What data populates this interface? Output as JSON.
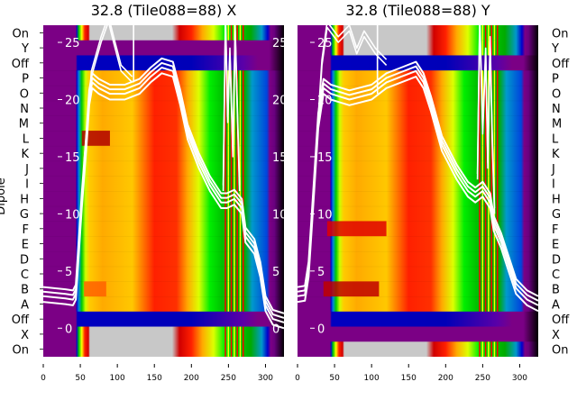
{
  "ylabel": "Dipole",
  "row_labels": [
    "On",
    "Y",
    "Off",
    "P",
    "O",
    "N",
    "M",
    "L",
    "K",
    "J",
    "I",
    "H",
    "G",
    "F",
    "E",
    "D",
    "C",
    "B",
    "A",
    "Off",
    "X",
    "On"
  ],
  "colors": {
    "line": "#ffffff",
    "gray": "#c8c8c8",
    "purple": "#7b0085"
  },
  "row_profiles": {
    "data": [
      [
        0,
        "#7b0085"
      ],
      [
        44,
        "#7b0085"
      ],
      [
        45,
        "#0000c8"
      ],
      [
        48,
        "#0088dd"
      ],
      [
        52,
        "#00cc00"
      ],
      [
        57,
        "#ccff00"
      ],
      [
        62,
        "#ffcc00"
      ],
      [
        80,
        "#ffaa00"
      ],
      [
        120,
        "#ffc800"
      ],
      [
        150,
        "#ff2000"
      ],
      [
        180,
        "#ff3000"
      ],
      [
        195,
        "#ffaa00"
      ],
      [
        210,
        "#ddff00"
      ],
      [
        225,
        "#00ee00"
      ],
      [
        250,
        "#00aa00"
      ],
      [
        272,
        "#00aa00"
      ],
      [
        282,
        "#0099cc"
      ],
      [
        302,
        "#0044dd"
      ],
      [
        306,
        "#7b0085"
      ],
      [
        312,
        "#6a0080"
      ],
      [
        325,
        "#000000"
      ]
    ],
    "off": [
      [
        0,
        "#7b0085"
      ],
      [
        44,
        "#7b0085"
      ],
      [
        46,
        "#0000c0"
      ],
      [
        200,
        "#0000b8"
      ],
      [
        270,
        "#5a00a8"
      ],
      [
        290,
        "#7b0085"
      ],
      [
        305,
        "#7b0085"
      ],
      [
        325,
        "#000000"
      ]
    ],
    "on": [
      [
        0,
        "#7b0085"
      ],
      [
        44,
        "#7b0085"
      ],
      [
        45,
        "#0000cc"
      ],
      [
        48,
        "#00cc00"
      ],
      [
        52,
        "#ffff00"
      ],
      [
        56,
        "#ff2000"
      ],
      [
        61,
        "#d00000"
      ],
      [
        63,
        "#c8c8c8"
      ],
      [
        174,
        "#c8c8c8"
      ],
      [
        184,
        "#d00000"
      ],
      [
        200,
        "#ff2000"
      ],
      [
        215,
        "#ffaa00"
      ],
      [
        230,
        "#ddff00"
      ],
      [
        245,
        "#00ee00"
      ],
      [
        280,
        "#00aa00"
      ],
      [
        295,
        "#0099cc"
      ],
      [
        303,
        "#0000cc"
      ],
      [
        307,
        "#7b0085"
      ],
      [
        312,
        "#6a0080"
      ],
      [
        325,
        "#000000"
      ]
    ],
    "purple": [
      [
        0,
        "#7b0085"
      ],
      [
        290,
        "#7b0085"
      ],
      [
        305,
        "#7b0085"
      ],
      [
        325,
        "#000000"
      ]
    ]
  },
  "stripes": [
    [
      245,
      "#ff0000"
    ],
    [
      249,
      "#ffff00"
    ],
    [
      253,
      "#ff0000"
    ],
    [
      257,
      "#ffff00"
    ],
    [
      261,
      "#ff0000"
    ],
    [
      265,
      "#ffff00"
    ],
    [
      269,
      "#ff0000"
    ]
  ],
  "chart_data": [
    {
      "type": "heatmap",
      "title": "32.8 (Tile088=88) X",
      "xlabel": "",
      "ylabel": "Dipole",
      "xlim": [
        0,
        325
      ],
      "xticks": [
        "0",
        "50",
        "100",
        "150",
        "200",
        "250",
        "300"
      ],
      "overlay_ylim": [
        -2.5,
        26.5
      ],
      "overlay_yticks": [
        "0",
        "5",
        "10",
        "15",
        "20",
        "25"
      ],
      "row_types": [
        "on",
        "purple",
        "off",
        "data",
        "data",
        "data",
        "data",
        "data",
        "data",
        "data",
        "data",
        "data",
        "data",
        "data",
        "data",
        "data",
        "data",
        "data",
        "data",
        "off",
        "on",
        "on"
      ],
      "hot_spots": [
        {
          "row": 7,
          "x": [
            52,
            90
          ],
          "color": "#b00000"
        },
        {
          "row": 17,
          "x": [
            55,
            85
          ],
          "color": "#ff6000"
        }
      ],
      "series": [
        {
          "name": "trace",
          "points": [
            [
              0,
              2.8
            ],
            [
              30,
              2.6
            ],
            [
              40,
              2.5
            ],
            [
              44,
              3
            ],
            [
              47,
              6
            ],
            [
              52,
              11
            ],
            [
              58,
              16
            ],
            [
              62,
              20
            ],
            [
              66,
              21.5
            ],
            [
              75,
              21
            ],
            [
              90,
              20.5
            ],
            [
              110,
              20.5
            ],
            [
              130,
              21
            ],
            [
              145,
              22
            ],
            [
              160,
              22.8
            ],
            [
              175,
              22.5
            ],
            [
              185,
              20
            ],
            [
              195,
              17
            ],
            [
              210,
              14.5
            ],
            [
              225,
              12.5
            ],
            [
              240,
              11
            ],
            [
              248,
              11
            ],
            [
              258,
              11.3
            ],
            [
              268,
              10.5
            ],
            [
              273,
              8
            ],
            [
              285,
              7
            ],
            [
              293,
              5
            ],
            [
              300,
              2
            ],
            [
              310,
              0.8
            ],
            [
              325,
              0.5
            ]
          ]
        },
        {
          "name": "spike-trace",
          "points": [
            [
              55,
              14
            ],
            [
              65,
              22
            ],
            [
              78,
              25
            ],
            [
              88,
              26.8
            ],
            [
              95,
              25
            ],
            [
              105,
              22.5
            ],
            [
              120,
              21.5
            ]
          ]
        },
        {
          "name": "spike-a",
          "points": [
            [
              122,
              21.5
            ],
            [
              122,
              27
            ]
          ]
        },
        {
          "name": "spike-b",
          "points": [
            [
              243,
              12
            ],
            [
              246,
              27
            ],
            [
              249,
              18
            ],
            [
              252,
              24
            ],
            [
              256,
              15
            ],
            [
              259,
              26
            ],
            [
              262,
              19
            ],
            [
              265,
              12
            ]
          ]
        }
      ]
    },
    {
      "type": "heatmap",
      "title": "32.8 (Tile088=88) Y",
      "xlabel": "",
      "ylabel": "",
      "xlim": [
        0,
        325
      ],
      "xticks": [
        "0",
        "50",
        "100",
        "150",
        "200",
        "250",
        "300"
      ],
      "overlay_ylim": [
        -2.5,
        26.5
      ],
      "overlay_yticks": [
        "0",
        "5",
        "10",
        "15",
        "20",
        "25"
      ],
      "row_types": [
        "on",
        "on",
        "off",
        "data",
        "data",
        "data",
        "data",
        "data",
        "data",
        "data",
        "data",
        "data",
        "data",
        "data",
        "data",
        "data",
        "data",
        "data",
        "data",
        "off",
        "purple",
        "on"
      ],
      "hot_spots": [
        {
          "row": 13,
          "x": [
            40,
            120
          ],
          "color": "#e00000"
        },
        {
          "row": 17,
          "x": [
            35,
            110
          ],
          "color": "#c00000"
        }
      ],
      "series": [
        {
          "name": "trace",
          "points": [
            [
              0,
              2.8
            ],
            [
              10,
              2.9
            ],
            [
              15,
              5
            ],
            [
              22,
              12
            ],
            [
              28,
              18
            ],
            [
              35,
              21
            ],
            [
              45,
              20.5
            ],
            [
              70,
              20
            ],
            [
              100,
              20.5
            ],
            [
              120,
              21.5
            ],
            [
              140,
              22
            ],
            [
              160,
              22.5
            ],
            [
              170,
              21.5
            ],
            [
              180,
              19.5
            ],
            [
              195,
              16
            ],
            [
              215,
              13.5
            ],
            [
              230,
              12
            ],
            [
              240,
              11.5
            ],
            [
              250,
              12
            ],
            [
              260,
              11
            ],
            [
              265,
              9
            ],
            [
              275,
              7.5
            ],
            [
              285,
              5.5
            ],
            [
              295,
              3.5
            ],
            [
              310,
              2.5
            ],
            [
              325,
              2
            ]
          ]
        },
        {
          "name": "spike-trace",
          "points": [
            [
              25,
              15
            ],
            [
              33,
              23
            ],
            [
              40,
              26.3
            ],
            [
              55,
              25
            ],
            [
              70,
              26
            ],
            [
              80,
              24
            ],
            [
              90,
              25.5
            ],
            [
              105,
              24
            ],
            [
              120,
              23
            ]
          ]
        },
        {
          "name": "spike-a",
          "points": [
            [
              108,
              20.5
            ],
            [
              108,
              27
            ]
          ]
        },
        {
          "name": "spike-b",
          "points": [
            [
              243,
              13
            ],
            [
              246,
              27
            ],
            [
              250,
              17
            ],
            [
              254,
              24
            ],
            [
              257,
              14
            ],
            [
              260,
              25
            ],
            [
              263,
              16
            ],
            [
              266,
              10
            ]
          ]
        }
      ]
    }
  ]
}
